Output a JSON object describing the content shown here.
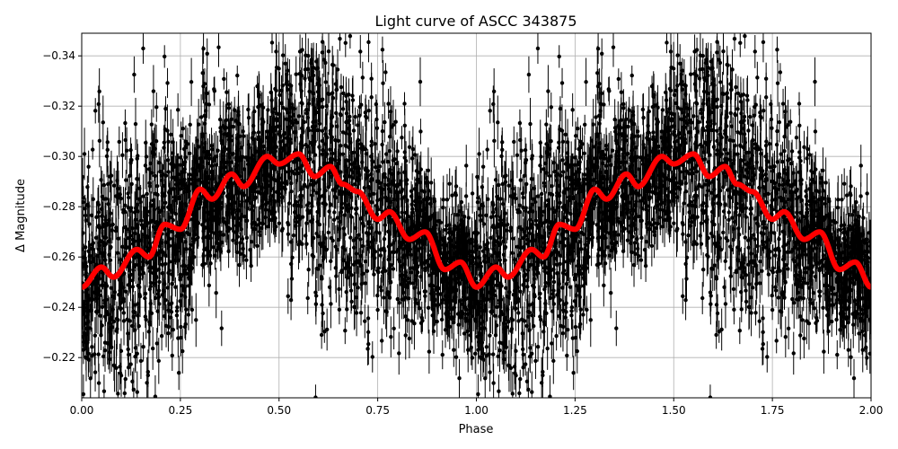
{
  "chart_data": {
    "type": "scatter",
    "title": "Light curve of ASCC 343875",
    "xlabel": "Phase",
    "ylabel": "Δ Magnitude",
    "xlim": [
      0,
      2
    ],
    "ylim": [
      -0.204,
      -0.349
    ],
    "y_inverted": true,
    "grid": true,
    "xticks": [
      0,
      0.25,
      0.5,
      0.75,
      1.0,
      1.25,
      1.5,
      1.75,
      2.0
    ],
    "xtick_labels": [
      "0.00",
      "0.25",
      "0.50",
      "0.75",
      "1.00",
      "1.25",
      "1.50",
      "1.75",
      "2.00"
    ],
    "yticks": [
      -0.34,
      -0.32,
      -0.3,
      -0.28,
      -0.26,
      -0.24,
      -0.22
    ],
    "ytick_labels": [
      "−0.34",
      "−0.32",
      "−0.30",
      "−0.28",
      "−0.26",
      "−0.24",
      "−0.22"
    ],
    "colors": {
      "points": "#000000",
      "model": "#ff0000",
      "grid": "#b0b0b0"
    },
    "observations": {
      "description_marks": "black points with vertical error bars, phase-folded and repeated over two cycles",
      "scatter_sd": 0.022,
      "typical_error": 0.006
    },
    "model_curve": {
      "phase": [
        0.0,
        0.05,
        0.08,
        0.14,
        0.17,
        0.21,
        0.25,
        0.3,
        0.33,
        0.38,
        0.41,
        0.47,
        0.5,
        0.55,
        0.59,
        0.63,
        0.66,
        0.7,
        0.75,
        0.78,
        0.83,
        0.87,
        0.92,
        0.96,
        1.0
      ],
      "magnitude": [
        -0.248,
        -0.256,
        -0.252,
        -0.263,
        -0.26,
        -0.273,
        -0.271,
        -0.287,
        -0.283,
        -0.293,
        -0.288,
        -0.3,
        -0.297,
        -0.301,
        -0.292,
        -0.296,
        -0.289,
        -0.286,
        -0.275,
        -0.278,
        -0.267,
        -0.27,
        -0.255,
        -0.258,
        -0.248
      ],
      "repeats": 2
    }
  }
}
